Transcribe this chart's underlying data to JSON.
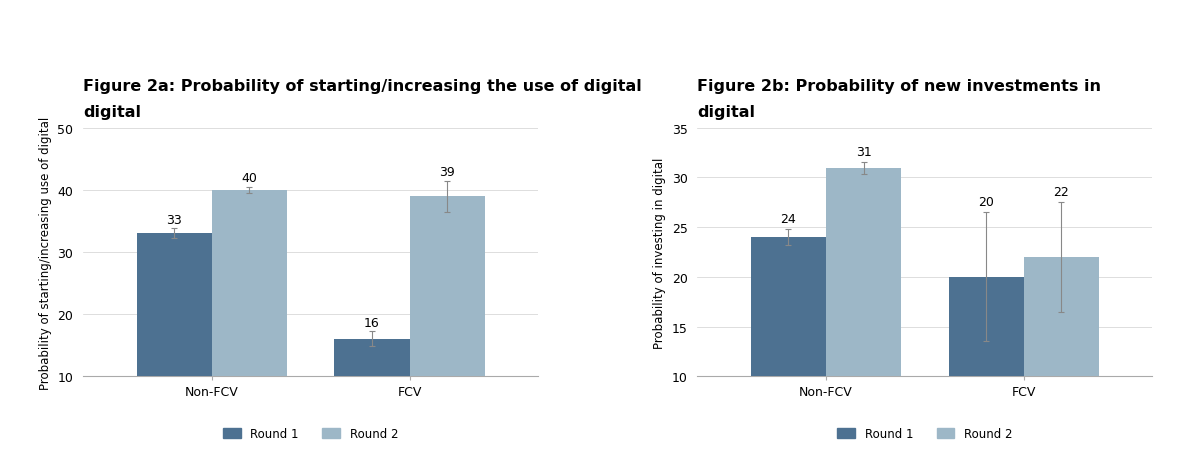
{
  "fig2a": {
    "title_line1": "Figure 2a: Probability of starting/increasing the use of digital",
    "title_line2": "digital",
    "ylabel": "Probability of starting/increasing use of digital",
    "groups": [
      "Non-FCV",
      "FCV"
    ],
    "round1_values": [
      33,
      16
    ],
    "round2_values": [
      40,
      39
    ],
    "round1_errors": [
      0.8,
      1.2
    ],
    "round2_errors": [
      0.5,
      2.5
    ],
    "ylim": [
      10,
      50
    ],
    "yticks": [
      10,
      20,
      30,
      40,
      50
    ]
  },
  "fig2b": {
    "title_line1": "Figure 2b: Probability of new investments in",
    "title_line2": "digital",
    "ylabel": "Probability of investing in digital",
    "groups": [
      "Non-FCV",
      "FCV"
    ],
    "round1_values": [
      24,
      20
    ],
    "round2_values": [
      31,
      22
    ],
    "round1_errors": [
      0.8,
      6.5
    ],
    "round2_errors": [
      0.6,
      5.5
    ],
    "ylim": [
      10,
      35
    ],
    "yticks": [
      10,
      15,
      20,
      25,
      30,
      35
    ]
  },
  "color_round1": "#4d7191",
  "color_round2": "#9db7c7",
  "legend_labels": [
    "Round 1",
    "Round 2"
  ],
  "bar_width": 0.38,
  "background_color": "#ffffff",
  "title_fontsize": 11.5,
  "label_fontsize": 8.5,
  "tick_fontsize": 9,
  "annotation_fontsize": 9
}
